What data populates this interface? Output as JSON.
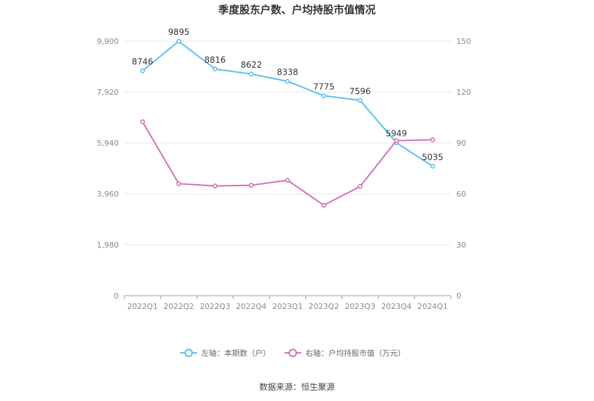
{
  "chart_data": {
    "type": "line",
    "title": "季度股东户数、户均持股市值情况",
    "categories": [
      "2022Q1",
      "2022Q2",
      "2022Q3",
      "2022Q4",
      "2023Q1",
      "2023Q2",
      "2023Q3",
      "2023Q4",
      "2024Q1"
    ],
    "y_left": {
      "ticks": [
        "0",
        "1,980",
        "3,960",
        "5,940",
        "7,920",
        "9,900"
      ],
      "range": [
        0,
        9900
      ]
    },
    "y_right": {
      "ticks": [
        "0",
        "30",
        "60",
        "90",
        "120",
        "150"
      ],
      "range": [
        0,
        150
      ]
    },
    "grid": true,
    "legend_position": "bottom",
    "series": [
      {
        "name": "左轴：本期数（户）",
        "axis": "left",
        "color": "#5bbfea",
        "values": [
          8746,
          9895,
          8816,
          8622,
          8338,
          7775,
          7596,
          5949,
          5035
        ],
        "labels": [
          "8746",
          "9895",
          "8816",
          "8622",
          "8338",
          "7775",
          "7596",
          "5949",
          "5035"
        ]
      },
      {
        "name": "右轴：户均持股市值（万元）",
        "axis": "right",
        "color": "#d36fb4",
        "values": [
          102.5,
          66.0,
          64.7,
          65.1,
          68.0,
          53.3,
          64.4,
          91.3,
          91.9
        ]
      }
    ]
  },
  "source": "数据来源：恒生聚源"
}
